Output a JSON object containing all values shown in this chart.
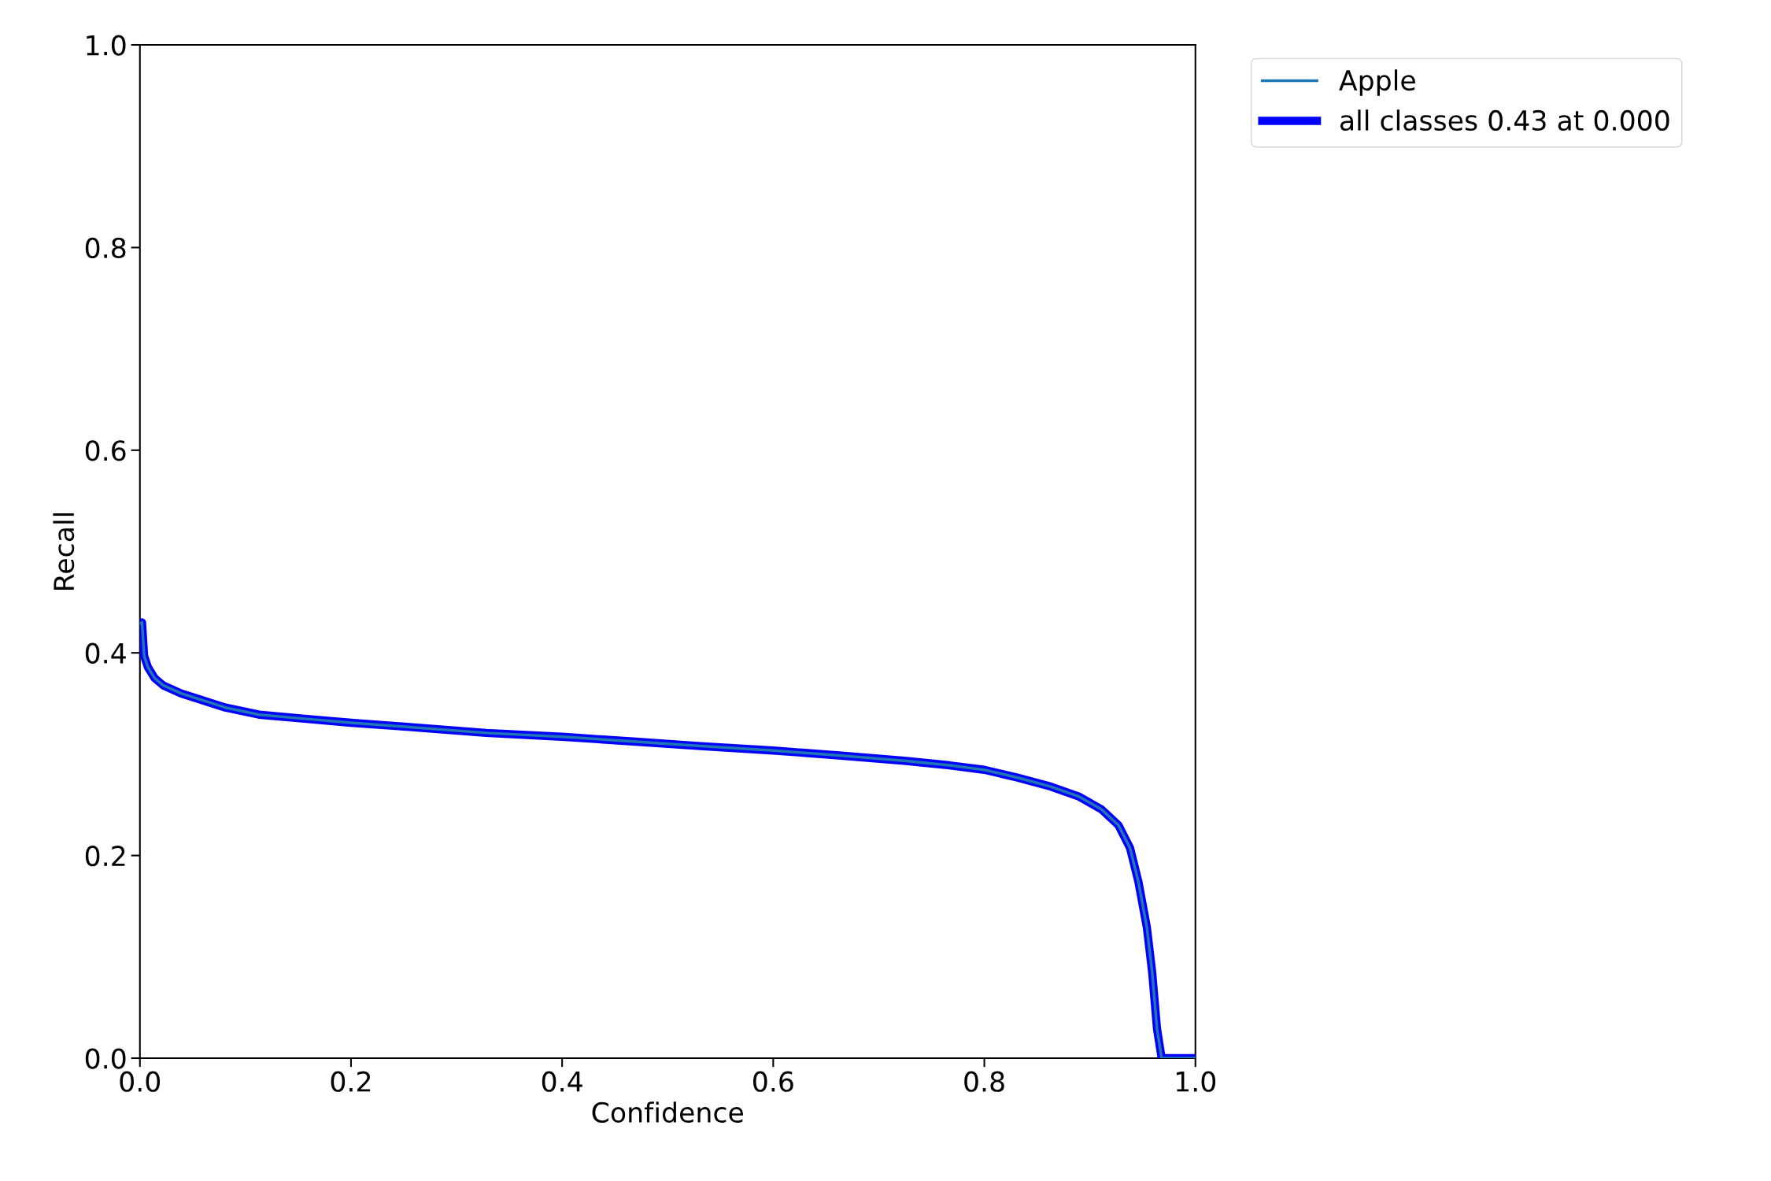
{
  "chart_data": {
    "type": "line",
    "xlabel": "Confidence",
    "ylabel": "Recall",
    "x": [
      0.0,
      0.002,
      0.004,
      0.0075,
      0.014,
      0.022,
      0.039,
      0.06,
      0.081,
      0.113,
      0.156,
      0.2,
      0.253,
      0.328,
      0.403,
      0.467,
      0.531,
      0.6,
      0.66,
      0.724,
      0.767,
      0.8,
      0.831,
      0.863,
      0.89,
      0.911,
      0.927,
      0.938,
      0.946,
      0.954,
      0.959,
      0.9636,
      0.968,
      1.0
    ],
    "series": [
      {
        "name": "Apple",
        "color": "#1f77b4",
        "values": [
          0.429,
          0.43,
          0.397,
          0.386,
          0.375,
          0.368,
          0.36,
          0.353,
          0.346,
          0.339,
          0.335,
          0.331,
          0.327,
          0.321,
          0.317,
          0.3125,
          0.308,
          0.3036,
          0.299,
          0.2935,
          0.289,
          0.2846,
          0.277,
          0.268,
          0.258,
          0.2455,
          0.23,
          0.2076,
          0.174,
          0.129,
          0.085,
          0.029,
          0.0,
          0.0
        ]
      },
      {
        "name": "all classes 0.43 at 0.000",
        "color": "#0000ff",
        "values": [
          0.429,
          0.43,
          0.397,
          0.386,
          0.375,
          0.368,
          0.36,
          0.353,
          0.346,
          0.339,
          0.335,
          0.331,
          0.327,
          0.321,
          0.317,
          0.3125,
          0.308,
          0.3036,
          0.299,
          0.2935,
          0.289,
          0.2846,
          0.277,
          0.268,
          0.258,
          0.2455,
          0.23,
          0.2076,
          0.174,
          0.129,
          0.085,
          0.029,
          0.0,
          0.0
        ]
      }
    ],
    "xlim": [
      0,
      1
    ],
    "ylim": [
      0,
      1
    ],
    "xticks": [
      {
        "value": 0,
        "label": "0.0"
      },
      0.2,
      0.4,
      0.6,
      0.8,
      {
        "value": 1,
        "label": "1.0"
      }
    ],
    "yticks": [
      {
        "value": 0,
        "label": "0.0"
      },
      0.2,
      0.4,
      0.6,
      0.8,
      {
        "value": 1,
        "label": "1.0"
      }
    ],
    "grid": false,
    "legend": "top right",
    "line_style": "solid",
    "marker": "none"
  }
}
